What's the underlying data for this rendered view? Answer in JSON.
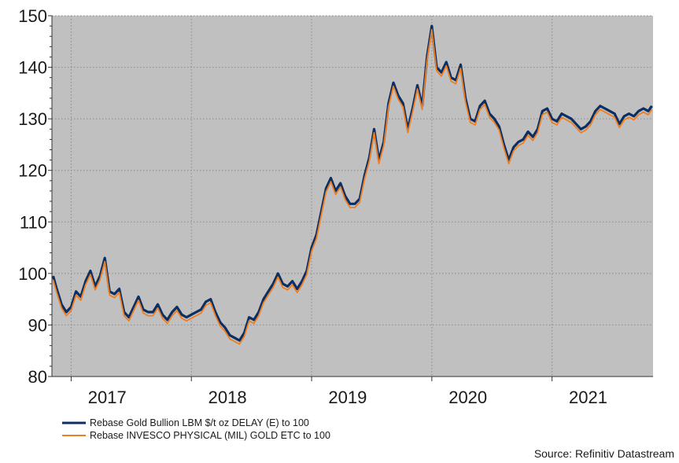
{
  "chart_data": {
    "type": "line",
    "title": "",
    "xlabel": "",
    "ylabel": "",
    "ylim": [
      80,
      150
    ],
    "yticks": [
      80,
      90,
      100,
      110,
      120,
      130,
      140,
      150
    ],
    "ytick_labels": [
      "80",
      "90",
      "100",
      "110",
      "120",
      "130",
      "140",
      "150"
    ],
    "xlim": [
      2016.54,
      2021.54
    ],
    "x_year_labels": [
      {
        "label": "2017",
        "center": 2017.0
      },
      {
        "label": "2018",
        "center": 2018.0
      },
      {
        "label": "2019",
        "center": 2019.0
      },
      {
        "label": "2020",
        "center": 2020.0
      },
      {
        "label": "2021",
        "center": 2021.0
      }
    ],
    "year_boundaries": [
      2016.7,
      2017.7,
      2018.7,
      2019.7,
      2020.7
    ],
    "grid": true,
    "legend_position": "bottom-left",
    "series": [
      {
        "name": "Rebase Gold Bullion LBM $/t oz DELAY (E) to 100",
        "color": "#0b2f63",
        "offset": 0.0,
        "x": [
          2016.55,
          2016.58,
          2016.62,
          2016.66,
          2016.7,
          2016.74,
          2016.78,
          2016.82,
          2016.86,
          2016.9,
          2016.94,
          2016.98,
          2017.02,
          2017.06,
          2017.1,
          2017.14,
          2017.18,
          2017.22,
          2017.26,
          2017.3,
          2017.34,
          2017.38,
          2017.42,
          2017.46,
          2017.5,
          2017.54,
          2017.58,
          2017.62,
          2017.66,
          2017.7,
          2017.74,
          2017.78,
          2017.82,
          2017.86,
          2017.9,
          2017.94,
          2017.98,
          2018.02,
          2018.06,
          2018.1,
          2018.14,
          2018.18,
          2018.22,
          2018.26,
          2018.3,
          2018.34,
          2018.38,
          2018.42,
          2018.46,
          2018.5,
          2018.54,
          2018.58,
          2018.62,
          2018.66,
          2018.7,
          2018.74,
          2018.78,
          2018.82,
          2018.86,
          2018.9,
          2018.94,
          2018.98,
          2019.02,
          2019.06,
          2019.1,
          2019.14,
          2019.18,
          2019.22,
          2019.26,
          2019.3,
          2019.34,
          2019.38,
          2019.42,
          2019.46,
          2019.5,
          2019.54,
          2019.58,
          2019.62,
          2019.66,
          2019.7,
          2019.74,
          2019.78,
          2019.82,
          2019.86,
          2019.9,
          2019.94,
          2019.98,
          2020.02,
          2020.06,
          2020.1,
          2020.14,
          2020.18,
          2020.22,
          2020.26,
          2020.3,
          2020.34,
          2020.38,
          2020.42,
          2020.46,
          2020.5,
          2020.54,
          2020.58,
          2020.62,
          2020.66,
          2020.7,
          2020.74,
          2020.78,
          2020.82,
          2020.86,
          2020.9,
          2020.94,
          2020.98,
          2021.02,
          2021.06,
          2021.1,
          2021.14,
          2021.18,
          2021.22,
          2021.26,
          2021.3,
          2021.34,
          2021.38,
          2021.42,
          2021.46,
          2021.5,
          2021.53
        ],
        "values": [
          99.5,
          97.0,
          94.0,
          92.5,
          93.5,
          96.5,
          95.5,
          98.5,
          100.5,
          97.5,
          99.5,
          103.0,
          96.5,
          96.0,
          97.0,
          92.5,
          91.5,
          93.5,
          95.5,
          93.0,
          92.5,
          92.5,
          94.0,
          92.0,
          91.0,
          92.5,
          93.5,
          92.0,
          91.5,
          92.0,
          92.5,
          93.0,
          94.5,
          95.0,
          92.5,
          90.5,
          89.5,
          88.0,
          87.5,
          87.0,
          88.5,
          91.5,
          91.0,
          92.5,
          95.0,
          96.5,
          98.0,
          100.0,
          98.0,
          97.5,
          98.5,
          97.0,
          98.5,
          100.5,
          105.0,
          107.5,
          112.0,
          116.5,
          118.5,
          116.0,
          117.5,
          115.0,
          113.5,
          113.5,
          114.5,
          119.0,
          122.5,
          128.0,
          122.0,
          125.5,
          133.0,
          137.0,
          134.5,
          133.0,
          128.0,
          132.0,
          136.5,
          132.5,
          142.0,
          148.0,
          140.0,
          139.0,
          141.0,
          138.0,
          137.5,
          140.5,
          134.0,
          130.0,
          129.5,
          132.5,
          133.5,
          131.0,
          130.0,
          128.5,
          125.0,
          122.0,
          124.5,
          125.5,
          126.0,
          127.5,
          126.5,
          128.0,
          131.5,
          132.0,
          130.0,
          129.5,
          131.0,
          130.5,
          130.0,
          129.0,
          128.0,
          128.5,
          129.5,
          131.5,
          132.5,
          132.0,
          131.5,
          131.0,
          129.0,
          130.5,
          131.0,
          130.5,
          131.5,
          132.0,
          131.5,
          132.5
        ]
      },
      {
        "name": "Rebase INVESCO PHYSICAL (MIL) GOLD ETC to 100",
        "color": "#f07d1e",
        "offset": -0.7,
        "x": [],
        "values": []
      }
    ]
  },
  "legend": {
    "gold_bullion": "Rebase Gold Bullion LBM $/t oz DELAY (E) to 100",
    "invesco": "Rebase INVESCO PHYSICAL (MIL) GOLD ETC to 100"
  },
  "source": "Source: Refinitiv Datastream"
}
